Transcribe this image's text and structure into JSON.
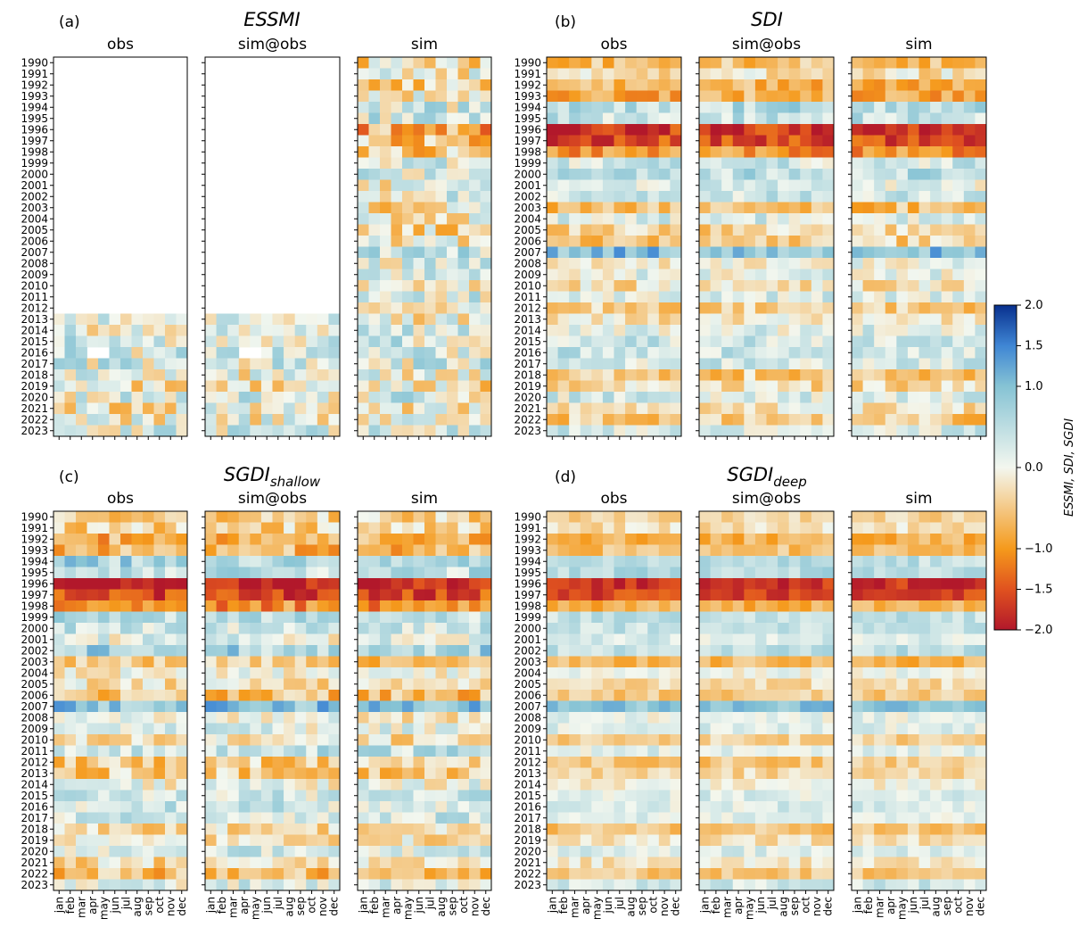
{
  "chart_data": {
    "type": "heatmap",
    "years": [
      "1990",
      "1991",
      "1992",
      "1993",
      "1994",
      "1995",
      "1996",
      "1997",
      "1998",
      "1999",
      "2000",
      "2001",
      "2002",
      "2003",
      "2004",
      "2005",
      "2006",
      "2007",
      "2008",
      "2009",
      "2010",
      "2011",
      "2012",
      "2013",
      "2014",
      "2015",
      "2016",
      "2017",
      "2018",
      "2019",
      "2020",
      "2021",
      "2022",
      "2023"
    ],
    "months": [
      "jan",
      "feb",
      "mar",
      "apr",
      "may",
      "jun",
      "jul",
      "aug",
      "sep",
      "oct",
      "nov",
      "dec"
    ],
    "columns": [
      "obs",
      "sim@obs",
      "sim"
    ],
    "colorbar": {
      "label": "ESSMI, SDI, SGDI",
      "ticks": [
        "2.0",
        "1.5",
        "1.0",
        "0.0",
        "−1.0",
        "−1.5",
        "−2.0"
      ],
      "vmin": -2.0,
      "vmax": 2.0
    },
    "panels": [
      {
        "letter": "(a)",
        "title": "ESSMI",
        "sub": "",
        "kind": "essmi",
        "first_year": "2013",
        "missing": "2016 apr–may"
      },
      {
        "letter": "(b)",
        "title": "SDI",
        "sub": "",
        "kind": "sdi"
      },
      {
        "letter": "(c)",
        "title": "SGDI",
        "sub": "shallow",
        "kind": "shallow"
      },
      {
        "letter": "(d)",
        "title": "SGDI",
        "sub": "deep",
        "kind": "deep"
      }
    ],
    "year_pattern": {
      "1990": -0.5,
      "1991": -0.3,
      "1992": -0.6,
      "1993": -0.7,
      "1994": 0.6,
      "1995": 0.5,
      "1996": -1.7,
      "1997": -1.5,
      "1998": -0.9,
      "1999": 0.3,
      "2000": 0.4,
      "2001": 0.2,
      "2002": 0.5,
      "2003": -0.6,
      "2004": 0.1,
      "2005": -0.3,
      "2006": -0.6,
      "2007": 0.9,
      "2008": 0.0,
      "2009": 0.2,
      "2010": -0.3,
      "2011": 0.3,
      "2012": -0.4,
      "2013": -0.3,
      "2014": 0.1,
      "2015": 0.3,
      "2016": 0.3,
      "2017": 0.2,
      "2018": -0.4,
      "2019": -0.3,
      "2020": 0.3,
      "2021": -0.2,
      "2022": -0.5,
      "2023": 0.3
    }
  }
}
